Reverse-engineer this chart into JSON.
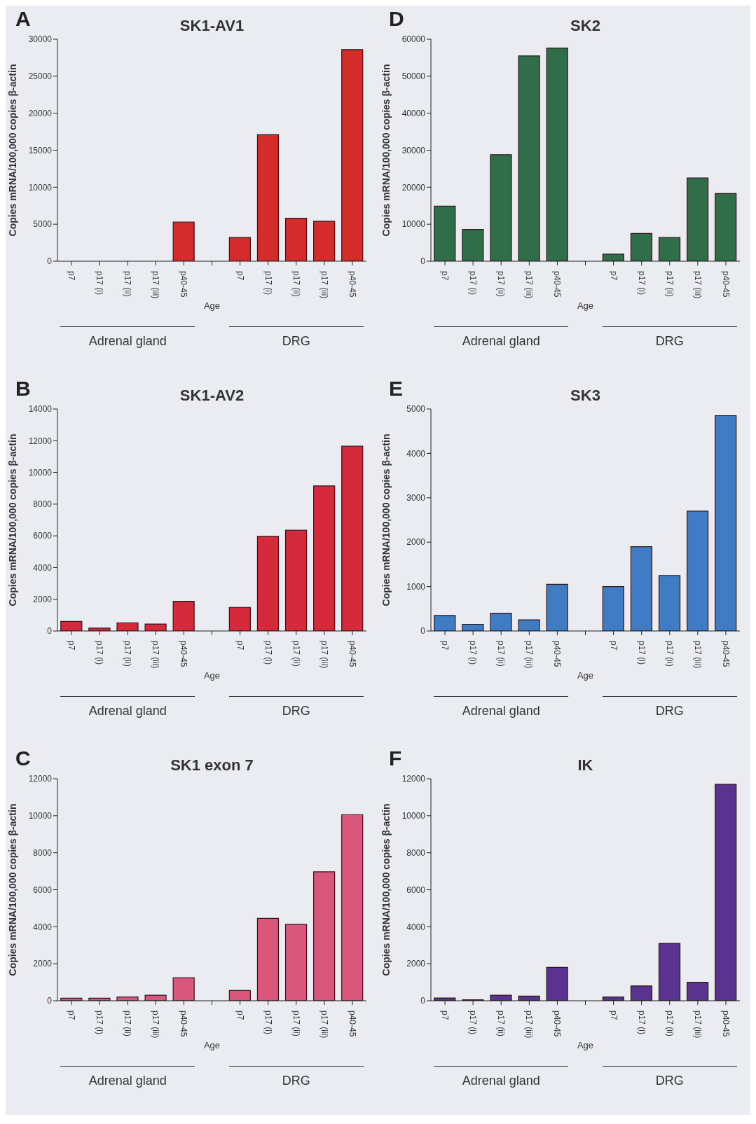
{
  "chart_data": [
    {
      "type": "bar",
      "title": "SK1-AV1",
      "xlabel": "Age",
      "ylabel": "Copies mRNA/100,000 copies β-actin",
      "annotations": [
        "A",
        "Adrenal gland",
        "DRG"
      ],
      "categories": [
        "p7",
        "p17 (i)",
        "p17 (ii)",
        "p17 (iii)",
        "p40-45",
        null,
        "p7",
        "p17 (i)",
        "p17 (ii)",
        "p17 (iii)",
        "p40-45"
      ],
      "values": [
        0,
        0,
        0,
        0,
        5300,
        null,
        3200,
        17100,
        5800,
        5400,
        28600
      ],
      "color": "#d42b2b",
      "ylim": [
        0,
        30000
      ],
      "yticks": [
        0,
        5000,
        10000,
        15000,
        20000,
        25000,
        30000
      ]
    },
    {
      "type": "bar",
      "title": "SK2",
      "xlabel": "Age",
      "ylabel": "Copies mRNA/100,000 copies β-actin",
      "annotations": [
        "D",
        "Adrenal gland",
        "DRG"
      ],
      "categories": [
        "p7",
        "p17 (i)",
        "p17 (ii)",
        "p17 (iii)",
        "p40-45",
        null,
        "p7",
        "p17 (i)",
        "p17 (ii)",
        "p17 (iii)",
        "p40-45"
      ],
      "values": [
        14900,
        8600,
        28800,
        55500,
        57600,
        null,
        1900,
        7500,
        6400,
        22500,
        18300
      ],
      "color": "#2f6e48",
      "ylim": [
        0,
        60000
      ],
      "yticks": [
        0,
        10000,
        20000,
        30000,
        40000,
        50000,
        60000
      ]
    },
    {
      "type": "bar",
      "title": "SK1-AV2",
      "xlabel": "Age",
      "ylabel": "Copies mRNA/100,000 copies β-actin",
      "annotations": [
        "B",
        "Adrenal gland",
        "DRG"
      ],
      "categories": [
        "p7",
        "p17 (i)",
        "p17 (ii)",
        "p17 (iii)",
        "p40-45",
        null,
        "p7",
        "p17 (i)",
        "p17 (ii)",
        "p17 (iii)",
        "p40-45"
      ],
      "values": [
        600,
        180,
        520,
        440,
        1870,
        null,
        1490,
        5970,
        6350,
        9150,
        11650
      ],
      "color": "#d42a3c",
      "ylim": [
        0,
        14000
      ],
      "yticks": [
        0,
        2000,
        4000,
        6000,
        8000,
        10000,
        12000,
        14000
      ]
    },
    {
      "type": "bar",
      "title": "SK3",
      "xlabel": "Age",
      "ylabel": "Copies mRNA/100,000 copies β-actin",
      "annotations": [
        "E",
        "Adrenal gland",
        "DRG"
      ],
      "categories": [
        "p7",
        "p17 (i)",
        "p17 (ii)",
        "p17 (iii)",
        "p40-45",
        null,
        "p7",
        "p17 (i)",
        "p17 (ii)",
        "p17 (iii)",
        "p40-45"
      ],
      "values": [
        350,
        150,
        400,
        250,
        1050,
        null,
        1000,
        1900,
        1250,
        2700,
        4850
      ],
      "color": "#3f7cc4",
      "ylim": [
        0,
        5000
      ],
      "yticks": [
        0,
        1000,
        2000,
        3000,
        4000,
        5000
      ]
    },
    {
      "type": "bar",
      "title": "SK1 exon 7",
      "xlabel": "Age",
      "ylabel": "Copies mRNA/100,000 copies β-actin",
      "annotations": [
        "C",
        "Adrenal gland",
        "DRG"
      ],
      "categories": [
        "p7",
        "p17 (i)",
        "p17 (ii)",
        "p17 (iii)",
        "p40-45",
        null,
        "p7",
        "p17 (i)",
        "p17 (ii)",
        "p17 (iii)",
        "p40-45"
      ],
      "values": [
        140,
        140,
        200,
        300,
        1250,
        null,
        550,
        4450,
        4130,
        6970,
        10060
      ],
      "color": "#d9577a",
      "ylim": [
        0,
        12000
      ],
      "yticks": [
        0,
        2000,
        4000,
        6000,
        8000,
        10000,
        12000
      ]
    },
    {
      "type": "bar",
      "title": "IK",
      "xlabel": "Age",
      "ylabel": "Copies mRNA/100,000 copies β-actin",
      "annotations": [
        "F",
        "Adrenal gland",
        "DRG"
      ],
      "categories": [
        "p7",
        "p17 (i)",
        "p17 (ii)",
        "p17 (iii)",
        "p40-45",
        null,
        "p7",
        "p17 (i)",
        "p17 (ii)",
        "p17 (iii)",
        "p40-45"
      ],
      "values": [
        150,
        50,
        300,
        250,
        1800,
        null,
        200,
        800,
        3100,
        1000,
        11700
      ],
      "color": "#5a3390",
      "ylim": [
        0,
        12000
      ],
      "yticks": [
        0,
        2000,
        4000,
        6000,
        8000,
        10000,
        12000
      ]
    }
  ]
}
